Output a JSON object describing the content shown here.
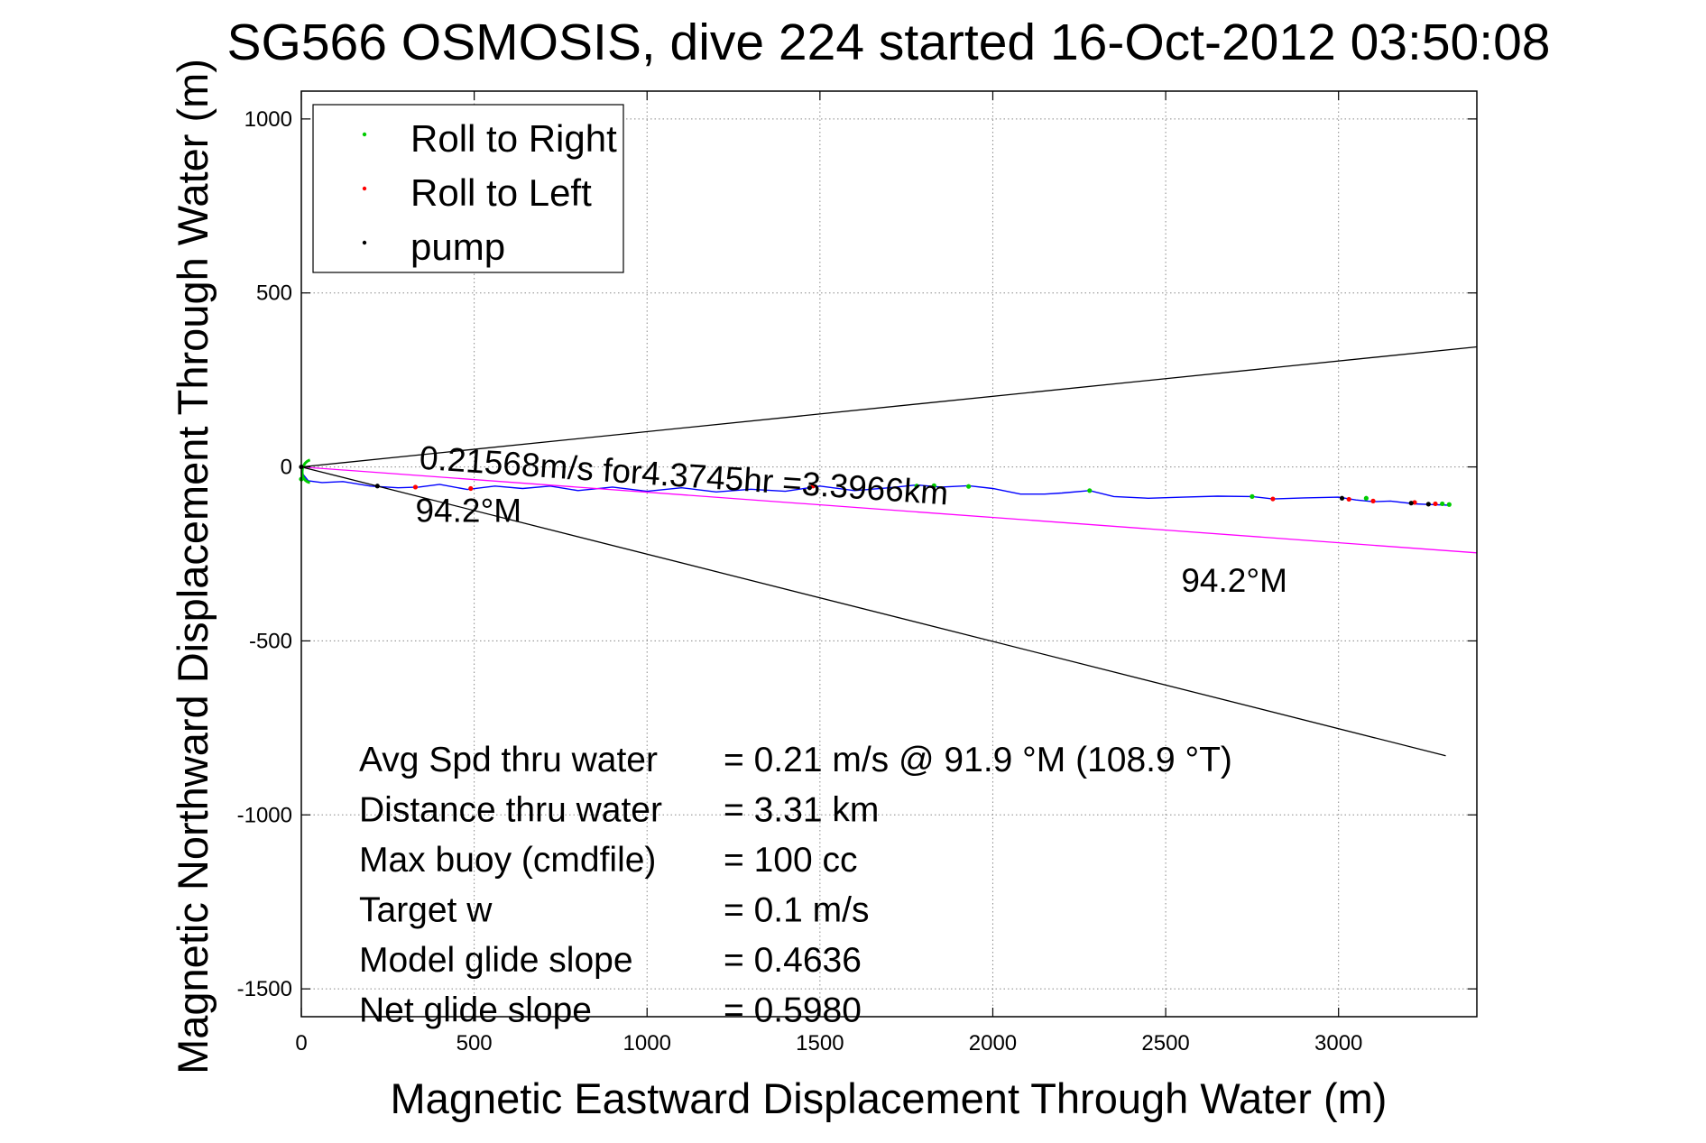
{
  "chart_data": {
    "type": "line",
    "title": "SG566 OSMOSIS, dive 224 started 16-Oct-2012 03:50:08",
    "xlabel": "Magnetic Eastward Displacement Through Water (m)",
    "ylabel": "Magnetic Northward Displacement Through Water (m)",
    "xlim": [
      0,
      3400
    ],
    "ylim": [
      -1580,
      1080
    ],
    "xticks": [
      0,
      500,
      1000,
      1500,
      2000,
      2500,
      3000
    ],
    "yticks": [
      -1500,
      -1000,
      -500,
      0,
      500,
      1000
    ],
    "grid": true,
    "legend_placement": "top-left",
    "legend": [
      {
        "label": "Roll to Right",
        "color": "#00cc00"
      },
      {
        "label": "Roll to Left",
        "color": "#ff0000"
      },
      {
        "label": "pump",
        "color": "#000000"
      }
    ],
    "series": [
      {
        "name": "track",
        "color": "#0000ff",
        "x": [
          0,
          20,
          60,
          120,
          200,
          280,
          340,
          400,
          480,
          560,
          640,
          720,
          800,
          900,
          1000,
          1100,
          1200,
          1300,
          1400,
          1500,
          1600,
          1700,
          1780,
          1850,
          1930,
          2000,
          2080,
          2150,
          2200,
          2280,
          2350,
          2450,
          2550,
          2650,
          2750,
          2810,
          2900,
          3000,
          3050,
          3100,
          3150,
          3220,
          3260,
          3320
        ],
        "y": [
          -15,
          -40,
          -45,
          -42,
          -55,
          -60,
          -58,
          -50,
          -65,
          -55,
          -62,
          -55,
          -68,
          -58,
          -70,
          -60,
          -72,
          -64,
          -70,
          -55,
          -68,
          -60,
          -52,
          -58,
          -54,
          -62,
          -78,
          -78,
          -75,
          -68,
          -85,
          -90,
          -87,
          -84,
          -85,
          -92,
          -89,
          -87,
          -95,
          -100,
          -98,
          -106,
          -108,
          -110
        ]
      },
      {
        "name": "heading",
        "color": "#ff00ff",
        "x": [
          0,
          3400
        ],
        "y": [
          0,
          -247
        ]
      },
      {
        "name": "cone-upper",
        "color": "#000000",
        "x": [
          0,
          3400
        ],
        "y": [
          0,
          345
        ]
      },
      {
        "name": "cone-lower",
        "color": "#000000",
        "x": [
          0,
          3310
        ],
        "y": [
          0,
          -830
        ]
      }
    ],
    "roll_right_points": {
      "x": [
        0,
        1780,
        1830,
        1930,
        2280,
        2750,
        3080,
        3300,
        3320
      ],
      "y": [
        -35,
        -55,
        -54,
        -56,
        -68,
        -85,
        -90,
        -106,
        -108
      ]
    },
    "roll_left_points": {
      "x": [
        330,
        490,
        1480,
        2810,
        3030,
        3100,
        3220,
        3280
      ],
      "y": [
        -58,
        -62,
        -55,
        -92,
        -93,
        -98,
        -102,
        -106
      ]
    },
    "pump_points": {
      "x": [
        0,
        220,
        1470,
        3010,
        3210,
        3260
      ],
      "y": [
        0,
        -55,
        -60,
        -90,
        -104,
        -107
      ]
    },
    "annotations": {
      "speed_line": "0.21568m/s for4.3745hr =3.3966km",
      "heading_near": "94.2°M",
      "heading_far": "94.2°M"
    },
    "stats": [
      {
        "label": "Avg Spd thru water",
        "value": "=  0.21 m/s @  91.9 °M (108.9 °T)"
      },
      {
        "label": "Distance thru water",
        "value": "=  3.31 km"
      },
      {
        "label": "Max buoy (cmdfile)",
        "value": "= 100 cc"
      },
      {
        "label": "Target w",
        "value": "= 0.1 m/s"
      },
      {
        "label": "Model glide slope",
        "value": "= 0.4636"
      },
      {
        "label": "Net glide slope",
        "value": "= 0.5980"
      }
    ]
  }
}
